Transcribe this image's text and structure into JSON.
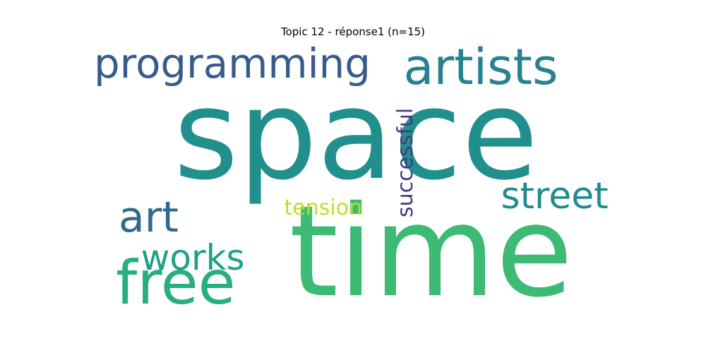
{
  "title": "Topic 12 - réponse1 (n=15)",
  "colors": {
    "background": "#ffffff",
    "title_text": "#000000"
  },
  "chart_data": {
    "type": "wordcloud",
    "title": "Topic 12 - réponse1 (n=15)",
    "words": [
      {
        "text": "space",
        "color": "#21908d"
      },
      {
        "text": "time",
        "color": "#3dbb75"
      },
      {
        "text": "artists",
        "color": "#25828e"
      },
      {
        "text": "programming",
        "color": "#365c8d"
      },
      {
        "text": "free",
        "color": "#29ae80"
      },
      {
        "text": "street",
        "color": "#228b8d"
      },
      {
        "text": "art",
        "color": "#30688e"
      },
      {
        "text": "works",
        "color": "#1fa188"
      },
      {
        "text": "successful",
        "color": "#443a83"
      },
      {
        "text": "tension",
        "color": "#bddf26"
      }
    ]
  }
}
